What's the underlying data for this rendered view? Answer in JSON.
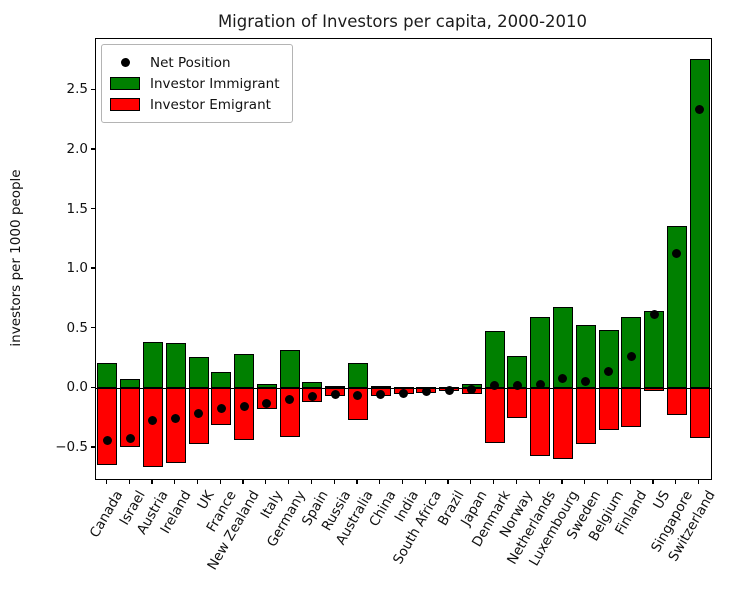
{
  "figure": {
    "title": "Migration of Investors per capita, 2000-2010",
    "ylabel": "investors per 1000 people"
  },
  "legend": {
    "position": "upper left",
    "items": [
      {
        "label": "Net Position",
        "marker": "dot",
        "color": "#000000"
      },
      {
        "label": "Investor Immigrant",
        "marker": "patch",
        "color": "#008000"
      },
      {
        "label": "Investor Emigrant",
        "marker": "patch",
        "color": "#ff0000"
      }
    ]
  },
  "chart_data": {
    "type": "bar",
    "title": "Migration of Investors per capita, 2000-2010",
    "xlabel": "",
    "ylabel": "investors per 1000 people",
    "grid": false,
    "legend_position": "upper left",
    "bar_edge_color": "#000000",
    "zero_line": true,
    "ylim": [
      -0.76,
      2.93
    ],
    "yticks": [
      -0.5,
      0.0,
      0.5,
      1.0,
      1.5,
      2.0,
      2.5
    ],
    "ytick_labels": [
      "−0.5",
      "0.0",
      "0.5",
      "1.0",
      "1.5",
      "2.0",
      "2.5"
    ],
    "categories": [
      "Canada",
      "Israel",
      "Austria",
      "Ireland",
      "UK",
      "France",
      "New Zealand",
      "Italy",
      "Germany",
      "Spain",
      "Russia",
      "Australia",
      "China",
      "India",
      "South Africa",
      "Brazil",
      "Japan",
      "Denmark",
      "Norway",
      "Netherlands",
      "Luxembourg",
      "Sweden",
      "Belgium",
      "Finland",
      "US",
      "Singapore",
      "Switzerland"
    ],
    "series": [
      {
        "name": "Investor Immigrant",
        "type": "bar",
        "color": "#008000",
        "values": [
          0.21,
          0.08,
          0.39,
          0.38,
          0.26,
          0.14,
          0.29,
          0.04,
          0.32,
          0.05,
          0.02,
          0.21,
          0.02,
          0.01,
          0.01,
          0.01,
          0.04,
          0.48,
          0.27,
          0.6,
          0.68,
          0.53,
          0.49,
          0.6,
          0.65,
          1.36,
          2.76
        ]
      },
      {
        "name": "Investor Emigrant",
        "type": "bar",
        "color": "#ff0000",
        "values": [
          -0.65,
          -0.5,
          -0.66,
          -0.63,
          -0.47,
          -0.31,
          -0.44,
          -0.18,
          -0.41,
          -0.12,
          -0.07,
          -0.27,
          -0.07,
          -0.05,
          -0.04,
          -0.03,
          -0.05,
          -0.46,
          -0.25,
          -0.57,
          -0.6,
          -0.47,
          -0.35,
          -0.33,
          -0.03,
          -0.23,
          -0.42
        ]
      },
      {
        "name": "Net Position",
        "type": "scatter",
        "color": "#000000",
        "values": [
          -0.44,
          -0.42,
          -0.27,
          -0.25,
          -0.21,
          -0.17,
          -0.15,
          -0.13,
          -0.09,
          -0.07,
          -0.05,
          -0.06,
          -0.05,
          -0.04,
          -0.03,
          -0.02,
          -0.01,
          0.02,
          0.02,
          0.03,
          0.08,
          0.06,
          0.14,
          0.27,
          0.62,
          1.13,
          2.34
        ]
      }
    ]
  }
}
